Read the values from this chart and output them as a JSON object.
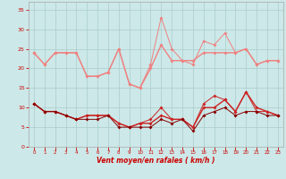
{
  "hours": [
    0,
    1,
    2,
    3,
    4,
    5,
    6,
    7,
    8,
    9,
    10,
    11,
    12,
    13,
    14,
    15,
    16,
    17,
    18,
    19,
    20,
    21,
    22,
    23
  ],
  "line_rafales_max_color": "#f08080",
  "line_rafales_avg_color": "#f08080",
  "line_vent_max_color": "#cc2222",
  "line_vent_avg_color": "#cc2222",
  "line_vent_min_color": "#880000",
  "rafales_max": [
    24,
    21,
    24,
    24,
    24,
    18,
    18,
    19,
    25,
    16,
    15,
    21,
    33,
    25,
    22,
    21,
    27,
    26,
    29,
    24,
    25,
    21,
    22,
    22
  ],
  "rafales_avg": [
    24,
    21,
    24,
    24,
    24,
    18,
    18,
    19,
    25,
    16,
    15,
    20,
    26,
    22,
    22,
    22,
    24,
    24,
    24,
    24,
    25,
    21,
    22,
    22
  ],
  "vent_max": [
    11,
    9,
    9,
    8,
    7,
    8,
    8,
    8,
    6,
    5,
    6,
    7,
    10,
    7,
    7,
    5,
    11,
    13,
    12,
    9,
    14,
    9,
    9,
    8
  ],
  "vent_avg": [
    11,
    9,
    9,
    8,
    7,
    8,
    8,
    8,
    6,
    5,
    6,
    6,
    8,
    7,
    7,
    5,
    10,
    10,
    12,
    9,
    14,
    10,
    9,
    8
  ],
  "vent_min": [
    11,
    9,
    9,
    8,
    7,
    7,
    7,
    8,
    5,
    5,
    5,
    5,
    7,
    6,
    7,
    4,
    8,
    9,
    10,
    8,
    9,
    9,
    8,
    8
  ],
  "bg_color": "#cce8e8",
  "grid_color": "#aacccc",
  "text_color": "#cc0000",
  "xlabel": "Vent moyen/en rafales ( km/h )",
  "ylim": [
    0,
    37
  ],
  "yticks": [
    0,
    5,
    10,
    15,
    20,
    25,
    30,
    35
  ]
}
